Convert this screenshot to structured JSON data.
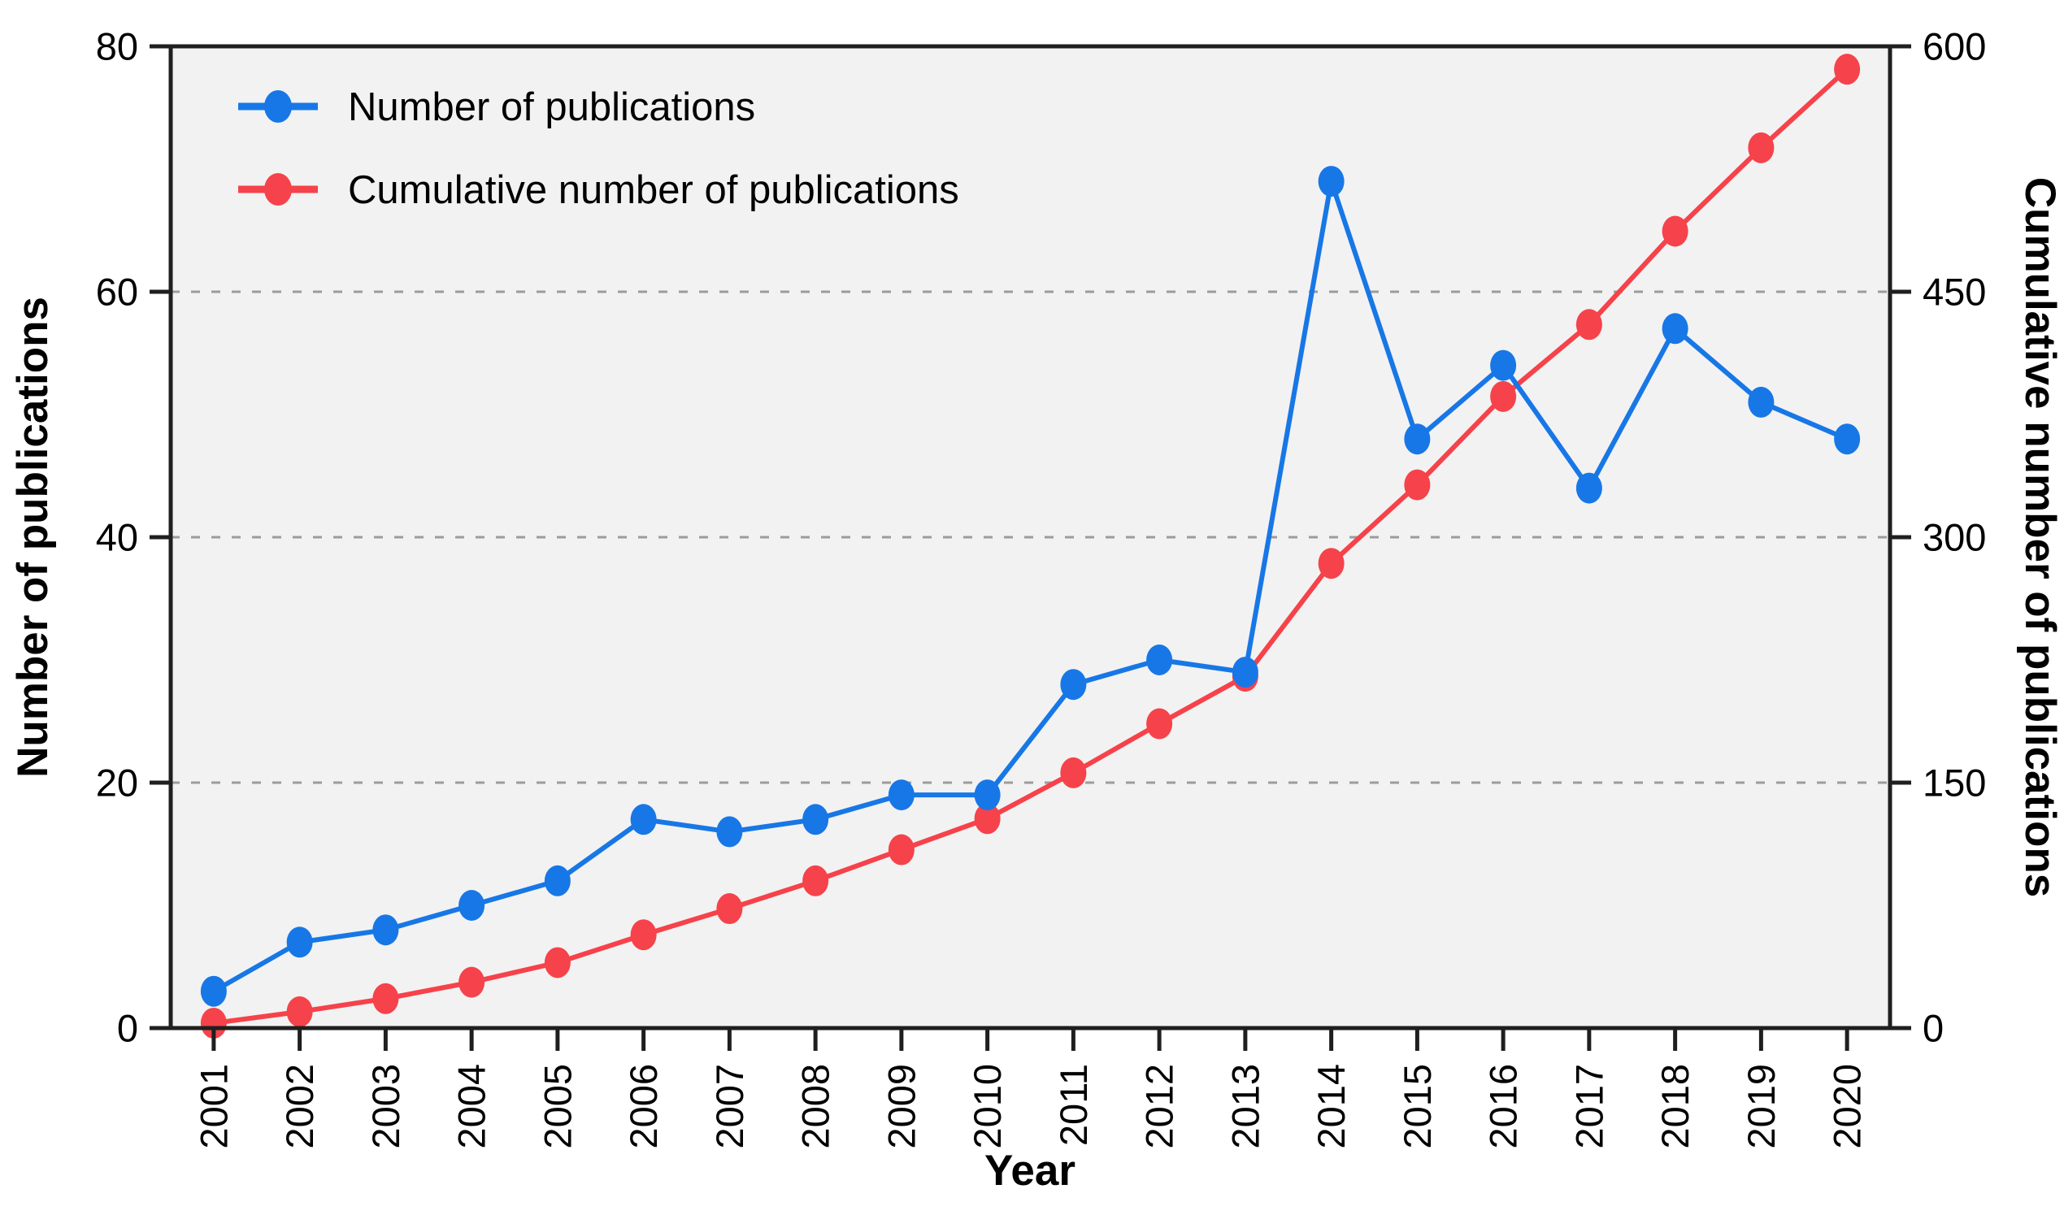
{
  "chart_data": {
    "type": "line",
    "x_categories": [
      "2001",
      "2002",
      "2003",
      "2004",
      "2005",
      "2006",
      "2007",
      "2008",
      "2009",
      "2010",
      "2011",
      "2012",
      "2013",
      "2014",
      "2015",
      "2016",
      "2017",
      "2018",
      "2019",
      "2020"
    ],
    "xlabel": "Year",
    "ylabel_left": "Number of publications",
    "ylabel_right": "Cumulative number of publications",
    "y_left_axis": {
      "min": 0,
      "max": 80,
      "ticks": [
        0,
        20,
        40,
        60,
        80
      ]
    },
    "y_right_axis": {
      "min": 0,
      "max": 600,
      "ticks": [
        0,
        150,
        300,
        450,
        600
      ]
    },
    "gridlines_left_values": [
      20,
      40,
      60
    ],
    "grid": "dashed-horizontal",
    "legend_position": "top-left-inside",
    "series": [
      {
        "name": "Number of publications",
        "axis": "left",
        "color": "#1777e6",
        "values": [
          3,
          7,
          8,
          10,
          12,
          17,
          16,
          17,
          19,
          19,
          28,
          30,
          29,
          69,
          48,
          54,
          44,
          57,
          51,
          48
        ]
      },
      {
        "name": "Cumulative number of publications",
        "axis": "right",
        "color": "#f6424a",
        "values": [
          3,
          10,
          18,
          28,
          40,
          57,
          73,
          90,
          109,
          128,
          156,
          186,
          215,
          284,
          332,
          386,
          430,
          487,
          538,
          586
        ]
      }
    ]
  },
  "style": {
    "plot_background": "#f2f2f2",
    "frame_color": "#1f1f1f",
    "grid_color": "#9c9c9c",
    "text_color": "#000000"
  }
}
